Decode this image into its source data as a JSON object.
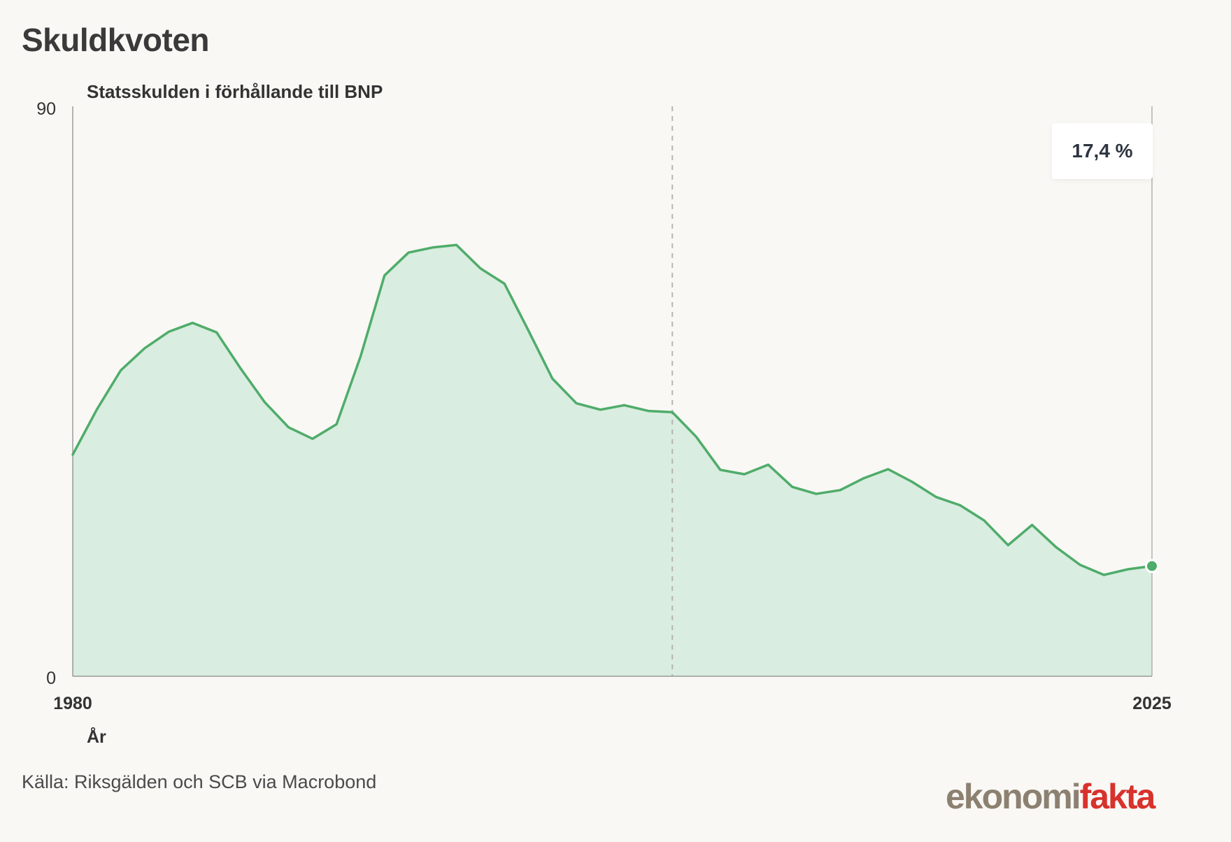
{
  "header": {
    "title": "Skuldkvoten"
  },
  "source": "Källa: Riksgälden och SCB via Macrobond",
  "logo": {
    "part_a": "ekonomi",
    "part_b": "fakta"
  },
  "callout": {
    "label": "17,4 %"
  },
  "chart_data": {
    "type": "area",
    "title": "Statsskulden i förhållande till BNP",
    "xlabel": "År",
    "ylabel": "",
    "xlim": [
      1980,
      2025
    ],
    "ylim": [
      0,
      90
    ],
    "x_tick_labels": [
      "1980",
      "2025"
    ],
    "y_tick_labels": [
      "0",
      "90"
    ],
    "grid": false,
    "reference_line_x": 2005,
    "colors": {
      "line": "#4fac6a",
      "fill": "#d9ede0",
      "axis": "#9a9a9a"
    },
    "series": [
      {
        "x": [
          1980,
          1981,
          1982,
          1983,
          1984,
          1985,
          1986,
          1987,
          1988,
          1989,
          1990,
          1991,
          1992,
          1993,
          1994,
          1995,
          1996,
          1997,
          1998,
          1999,
          2000,
          2001,
          2002,
          2003,
          2004,
          2005,
          2006,
          2007,
          2008,
          2009,
          2010,
          2011,
          2012,
          2013,
          2014,
          2015,
          2016,
          2017,
          2018,
          2019,
          2020,
          2021,
          2022,
          2023,
          2024,
          2025
        ],
        "y": [
          35.0,
          42.1,
          48.3,
          51.8,
          54.4,
          55.8,
          54.3,
          48.6,
          43.3,
          39.3,
          37.5,
          39.8,
          50.5,
          63.3,
          66.9,
          67.7,
          68.1,
          64.4,
          62.0,
          54.6,
          47.0,
          43.1,
          42.1,
          42.8,
          41.9,
          41.7,
          37.8,
          32.6,
          31.9,
          33.4,
          29.9,
          28.8,
          29.4,
          31.3,
          32.7,
          30.7,
          28.3,
          27.0,
          24.6,
          20.7,
          23.9,
          20.4,
          17.6,
          16.0,
          16.9,
          17.4
        ]
      }
    ]
  }
}
